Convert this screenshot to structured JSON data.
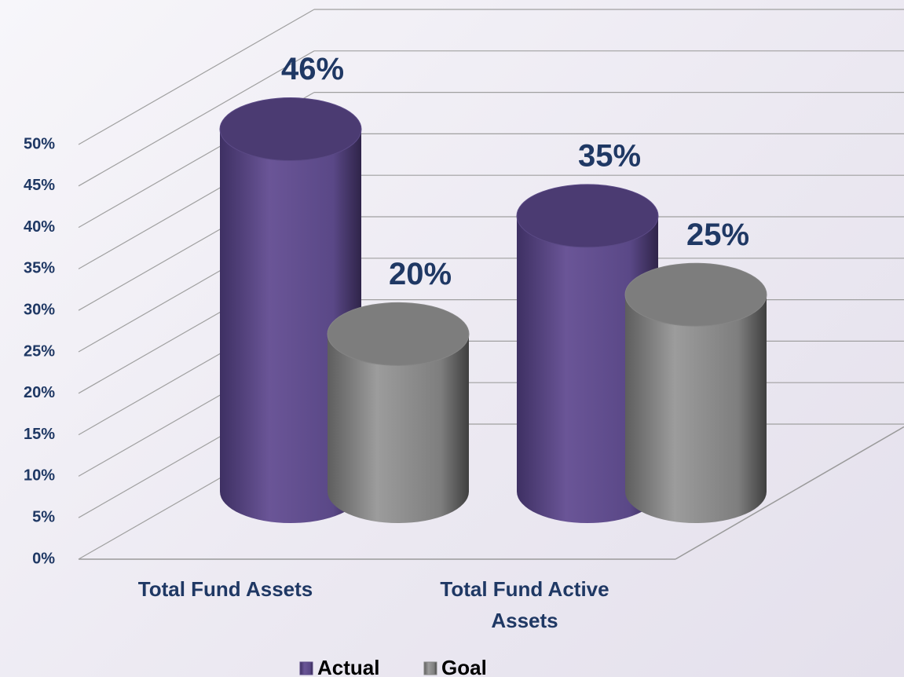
{
  "chart_data": {
    "type": "bar3d",
    "categories": [
      "Total Fund Assets",
      "Total Fund Active Assets"
    ],
    "series": [
      {
        "name": "Actual",
        "color": "#5b4a86",
        "values": [
          46,
          35
        ],
        "value_labels": [
          "46%",
          "35%"
        ]
      },
      {
        "name": "Goal",
        "color": "#858585",
        "values": [
          20,
          25
        ],
        "value_labels": [
          "20%",
          "25%"
        ]
      }
    ],
    "ylim": [
      0,
      50
    ],
    "yticks": [
      {
        "value": 0,
        "label": "0%"
      },
      {
        "value": 5,
        "label": "5%"
      },
      {
        "value": 10,
        "label": "10%"
      },
      {
        "value": 15,
        "label": "15%"
      },
      {
        "value": 20,
        "label": "20%"
      },
      {
        "value": 25,
        "label": "25%"
      },
      {
        "value": 30,
        "label": "30%"
      },
      {
        "value": 35,
        "label": "35%"
      },
      {
        "value": 40,
        "label": "40%"
      },
      {
        "value": 45,
        "label": "45%"
      },
      {
        "value": 50,
        "label": "50%"
      }
    ],
    "grid": true,
    "legend": "bottom"
  }
}
